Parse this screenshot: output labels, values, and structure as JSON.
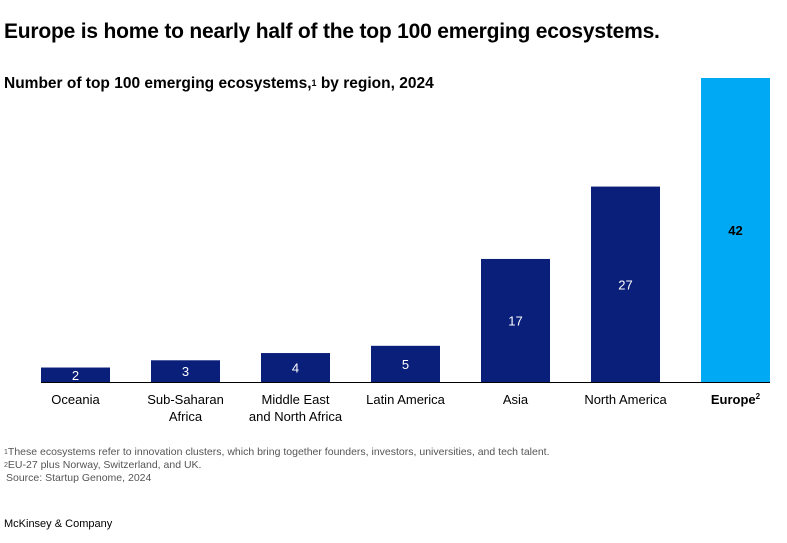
{
  "title": "Europe is home to nearly half of the top 100 emerging ecosystems.",
  "subtitle_main": "Number of top 100 emerging ecosystems,",
  "subtitle_sup": "1",
  "subtitle_rest": " by region, 2024",
  "footnotes": {
    "note1_marker": "1",
    "note1": "These ecosystems refer to innovation clusters, which bring together founders, investors, universities, and tech talent.",
    "note2_marker": "2",
    "note2": "EU-27 plus Norway, Switzerland, and UK.",
    "source": "Source: Startup Genome, 2024"
  },
  "brand": "McKinsey & Company",
  "colors": {
    "primary": "#0a1f7a",
    "highlight": "#00a9f4",
    "baseline": "#000000"
  },
  "chart_data": {
    "type": "bar",
    "categories": [
      "Oceania",
      "Sub-Saharan Africa",
      "Middle East and North Africa",
      "Latin America",
      "Asia",
      "North America",
      "Europe"
    ],
    "category_lines": [
      [
        "Oceania"
      ],
      [
        "Sub-Saharan",
        "Africa"
      ],
      [
        "Middle East",
        "and North Africa"
      ],
      [
        "Latin America"
      ],
      [
        "Asia"
      ],
      [
        "North America"
      ],
      [
        "Europe"
      ]
    ],
    "category_sups": [
      "",
      "",
      "",
      "",
      "",
      "",
      "2"
    ],
    "values": [
      2,
      3,
      4,
      5,
      17,
      27,
      42
    ],
    "highlight_index": 6,
    "ylim": [
      0,
      42
    ]
  }
}
